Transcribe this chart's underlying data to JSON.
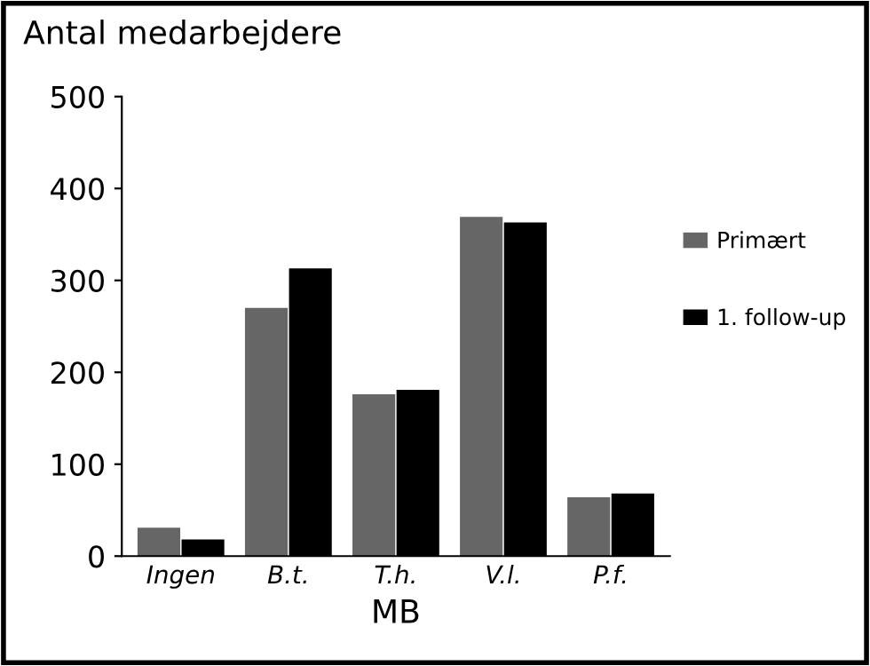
{
  "chart_data": {
    "type": "bar",
    "ylabel": "Antal medarbejdere",
    "xlabel": "MB",
    "categories": [
      "Ingen",
      "B.t.",
      "T.h.",
      "V.l.",
      "P.f."
    ],
    "series": [
      {
        "name": "Primært",
        "color": "#666666",
        "values": [
          31,
          270,
          176,
          369,
          64
        ]
      },
      {
        "name": "1. follow-up",
        "color": "#000000",
        "values": [
          18,
          313,
          181,
          363,
          68
        ]
      }
    ],
    "ylim": [
      0,
      500
    ],
    "yticks": [
      0,
      100,
      200,
      300,
      400,
      500
    ],
    "grid": false,
    "legend": "right"
  }
}
